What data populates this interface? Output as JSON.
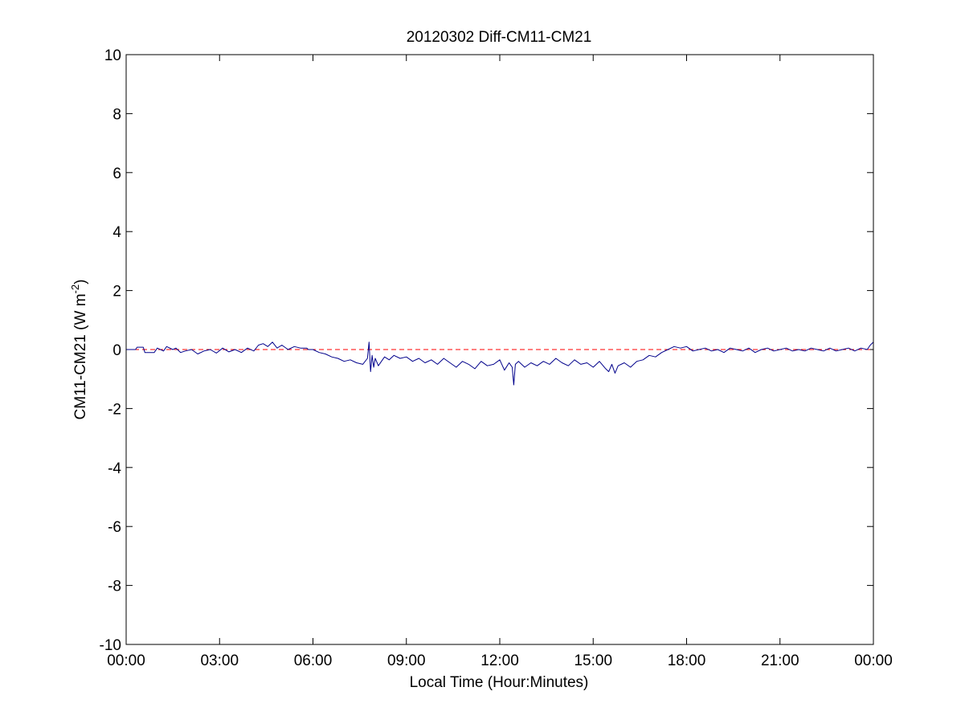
{
  "chart_data": {
    "type": "line",
    "title": "20120302 Diff-CM11-CM21",
    "xlabel": "Local Time (Hour:Minutes)",
    "ylabel_main": "CM11-CM21 (W m",
    "ylabel_sup": "-2",
    "ylabel_close": ")",
    "xlim_hours": [
      0,
      24
    ],
    "ylim": [
      -10,
      10
    ],
    "x_ticks": [
      {
        "hours": 0,
        "label": "00:00"
      },
      {
        "hours": 3,
        "label": "03:00"
      },
      {
        "hours": 6,
        "label": "06:00"
      },
      {
        "hours": 9,
        "label": "09:00"
      },
      {
        "hours": 12,
        "label": "12:00"
      },
      {
        "hours": 15,
        "label": "15:00"
      },
      {
        "hours": 18,
        "label": "18:00"
      },
      {
        "hours": 21,
        "label": "21:00"
      },
      {
        "hours": 24,
        "label": "00:00"
      }
    ],
    "y_ticks": [
      {
        "value": 10,
        "label": "10"
      },
      {
        "value": 8,
        "label": "8"
      },
      {
        "value": 6,
        "label": "6"
      },
      {
        "value": 4,
        "label": "4"
      },
      {
        "value": 2,
        "label": "2"
      },
      {
        "value": 0,
        "label": "0"
      },
      {
        "value": -2,
        "label": "-2"
      },
      {
        "value": -4,
        "label": "-4"
      },
      {
        "value": -6,
        "label": "-6"
      },
      {
        "value": -8,
        "label": "-8"
      },
      {
        "value": -10,
        "label": "-10"
      }
    ],
    "grid": false,
    "reference_line": {
      "y": 0,
      "color": "#ff0000",
      "style": "dashed"
    },
    "series": [
      {
        "color": "#00008b",
        "x_hours": [
          0.0,
          0.3,
          0.35,
          0.55,
          0.6,
          0.9,
          1.0,
          1.2,
          1.3,
          1.5,
          1.6,
          1.75,
          1.9,
          2.1,
          2.3,
          2.5,
          2.7,
          2.9,
          3.1,
          3.3,
          3.5,
          3.7,
          3.9,
          4.1,
          4.25,
          4.4,
          4.55,
          4.7,
          4.85,
          5.0,
          5.2,
          5.4,
          5.6,
          5.8,
          5.85,
          6.0,
          6.2,
          6.4,
          6.6,
          6.8,
          7.0,
          7.2,
          7.4,
          7.6,
          7.75,
          7.8,
          7.85,
          7.9,
          7.95,
          8.0,
          8.1,
          8.2,
          8.3,
          8.45,
          8.6,
          8.8,
          9.0,
          9.2,
          9.4,
          9.6,
          9.8,
          10.0,
          10.2,
          10.4,
          10.6,
          10.8,
          11.0,
          11.2,
          11.4,
          11.6,
          11.8,
          12.0,
          12.15,
          12.3,
          12.4,
          12.45,
          12.5,
          12.6,
          12.8,
          13.0,
          13.2,
          13.4,
          13.6,
          13.8,
          14.0,
          14.2,
          14.4,
          14.6,
          14.8,
          15.0,
          15.2,
          15.4,
          15.5,
          15.6,
          15.7,
          15.8,
          16.0,
          16.2,
          16.4,
          16.6,
          16.8,
          17.0,
          17.2,
          17.4,
          17.6,
          17.8,
          18.0,
          18.2,
          18.4,
          18.6,
          18.8,
          19.0,
          19.2,
          19.4,
          19.6,
          19.8,
          20.0,
          20.2,
          20.4,
          20.6,
          20.8,
          21.0,
          21.2,
          21.4,
          21.6,
          21.8,
          22.0,
          22.2,
          22.4,
          22.6,
          22.8,
          23.0,
          23.2,
          23.4,
          23.6,
          23.8,
          23.9,
          24.0
        ],
        "y": [
          0.0,
          0.0,
          0.08,
          0.08,
          -0.1,
          -0.1,
          0.05,
          -0.05,
          0.1,
          0.0,
          0.05,
          -0.1,
          -0.05,
          0.0,
          -0.15,
          -0.05,
          0.0,
          -0.12,
          0.05,
          -0.08,
          0.0,
          -0.1,
          0.05,
          -0.05,
          0.15,
          0.2,
          0.1,
          0.25,
          0.05,
          0.15,
          0.0,
          0.1,
          0.05,
          0.05,
          0.0,
          0.0,
          -0.1,
          -0.15,
          -0.25,
          -0.3,
          -0.4,
          -0.35,
          -0.45,
          -0.5,
          -0.3,
          0.25,
          -0.75,
          -0.2,
          -0.6,
          -0.3,
          -0.55,
          -0.4,
          -0.25,
          -0.35,
          -0.2,
          -0.3,
          -0.25,
          -0.4,
          -0.3,
          -0.45,
          -0.35,
          -0.5,
          -0.3,
          -0.45,
          -0.6,
          -0.4,
          -0.5,
          -0.65,
          -0.4,
          -0.55,
          -0.5,
          -0.35,
          -0.7,
          -0.45,
          -0.6,
          -1.2,
          -0.5,
          -0.4,
          -0.6,
          -0.45,
          -0.55,
          -0.4,
          -0.5,
          -0.3,
          -0.45,
          -0.55,
          -0.35,
          -0.5,
          -0.45,
          -0.6,
          -0.4,
          -0.65,
          -0.75,
          -0.5,
          -0.8,
          -0.55,
          -0.45,
          -0.6,
          -0.4,
          -0.35,
          -0.2,
          -0.25,
          -0.1,
          0.0,
          0.1,
          0.05,
          0.1,
          -0.05,
          0.0,
          0.05,
          -0.05,
          0.0,
          -0.1,
          0.05,
          0.0,
          -0.05,
          0.05,
          -0.1,
          0.0,
          0.05,
          -0.05,
          0.0,
          0.05,
          -0.05,
          0.0,
          -0.05,
          0.05,
          0.0,
          -0.05,
          0.05,
          -0.05,
          0.0,
          0.05,
          -0.05,
          0.05,
          0.0,
          0.15,
          0.25
        ]
      }
    ]
  }
}
